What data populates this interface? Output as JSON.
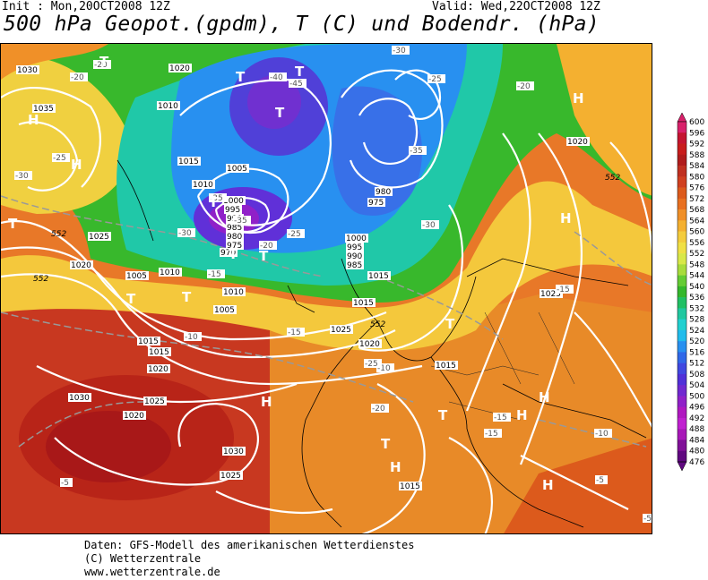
{
  "header": {
    "init": "Init : Mon,20OCT2008 12Z",
    "valid": "Valid: Wed,22OCT2008 12Z",
    "title": "500 hPa Geopot.(gpdm), T (C) und Bodendr. (hPa)"
  },
  "colorbar": {
    "levels": [
      "600",
      "596",
      "592",
      "588",
      "584",
      "580",
      "576",
      "572",
      "568",
      "564",
      "560",
      "556",
      "552",
      "548",
      "544",
      "540",
      "536",
      "532",
      "528",
      "524",
      "520",
      "516",
      "512",
      "508",
      "504",
      "500",
      "496",
      "492",
      "488",
      "484",
      "480",
      "476"
    ],
    "colors": [
      "#d8206a",
      "#c41430",
      "#c81c1c",
      "#b01c1c",
      "#c03020",
      "#d04020",
      "#dc5a1c",
      "#e87020",
      "#f09028",
      "#f4b030",
      "#f4cc3c",
      "#f0e044",
      "#d8e848",
      "#a8dc3c",
      "#64cc34",
      "#34b82c",
      "#20c064",
      "#20c8a0",
      "#20d0d0",
      "#20bcec",
      "#2890f0",
      "#3068e8",
      "#4048e0",
      "#5030d8",
      "#7028d0",
      "#9020c8",
      "#b018c0",
      "#c020d0",
      "#a818b8",
      "#801098",
      "#600880"
    ]
  },
  "map": {
    "pressure_labels": [
      "1030",
      "1035",
      "1020",
      "1010",
      "1015",
      "1010",
      "1005",
      "1000",
      "995",
      "990",
      "985",
      "980",
      "975",
      "970",
      "1025",
      "1020",
      "1005",
      "1010",
      "1015",
      "1020",
      "1025",
      "1030",
      "1010",
      "1005",
      "1015",
      "1020",
      "1025",
      "1030",
      "1025",
      "1020",
      "1015",
      "1015",
      "1020",
      "1025",
      "1015",
      "1000",
      "995",
      "990",
      "985",
      "980",
      "975",
      "1015"
    ],
    "temperature_labels": [
      "-20",
      "-20",
      "-25",
      "-30",
      "-35",
      "-40",
      "-45",
      "-35",
      "-30",
      "-25",
      "-20",
      "-15",
      "-10",
      "-5",
      "-30",
      "-25",
      "-20",
      "-15",
      "-10",
      "-5",
      "-35",
      "-30",
      "-25",
      "-20",
      "-15",
      "-15",
      "-15",
      "-10",
      "-5"
    ],
    "centers": [
      "H",
      "H",
      "H",
      "H",
      "H",
      "H",
      "H",
      "H",
      "H",
      "T",
      "T",
      "T",
      "T",
      "T",
      "T",
      "T",
      "T",
      "T",
      "T",
      "T",
      "T",
      "T"
    ],
    "height_labels": [
      "552",
      "552",
      "552",
      "552"
    ]
  },
  "credits": {
    "line1": "Daten: GFS-Modell des amerikanischen Wetterdienstes",
    "line2": "(C) Wetterzentrale",
    "line3": "www.wetterzentrale.de"
  }
}
